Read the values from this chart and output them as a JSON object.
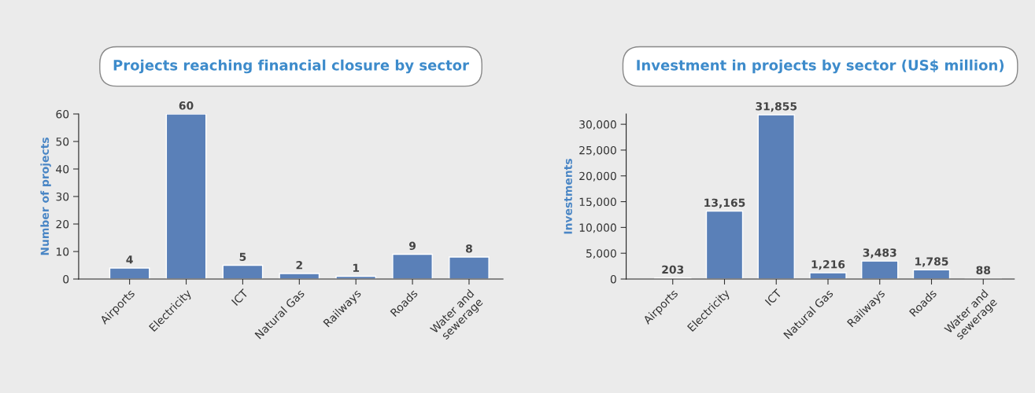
{
  "chart_data": [
    {
      "type": "bar",
      "title": "Projects reaching financial closure by sector",
      "ylabel": "Number of projects",
      "categories": [
        "Airports",
        "Electricity",
        "ICT",
        "Natural Gas",
        "Railways",
        "Roads",
        "Water and\nsewerage"
      ],
      "values": [
        4,
        60,
        5,
        2,
        1,
        9,
        8
      ],
      "color": "#5a80b8",
      "ylim": [
        0,
        60
      ],
      "yticks": [
        0,
        10,
        20,
        30,
        40,
        50,
        60
      ],
      "data_labels": true,
      "grid": false,
      "legend": false
    },
    {
      "type": "bar",
      "title": "Investment in projects by sector (US$ million)",
      "ylabel": "Investments",
      "categories": [
        "Airports",
        "Electricity",
        "ICT",
        "Natural Gas",
        "Railways",
        "Roads",
        "Water and\nsewerage"
      ],
      "values": [
        203,
        13165,
        31855,
        1216,
        3483,
        1785,
        88
      ],
      "color": "#5a80b8",
      "value_labels": [
        "203",
        "13,165",
        "31,855",
        "1,216",
        "3,483",
        "1,785",
        "88"
      ],
      "ylim": [
        0,
        32000
      ],
      "yticks": [
        0,
        {
          "value": 5000,
          "label": "5,000"
        },
        {
          "value": 10000,
          "label": "10,000"
        },
        {
          "value": 15000,
          "label": "15,000"
        },
        {
          "value": 20000,
          "label": "20,000"
        },
        {
          "value": 25000,
          "label": "25,000"
        },
        {
          "value": 30000,
          "label": "30,000"
        }
      ],
      "grid": false,
      "legend": false
    }
  ]
}
